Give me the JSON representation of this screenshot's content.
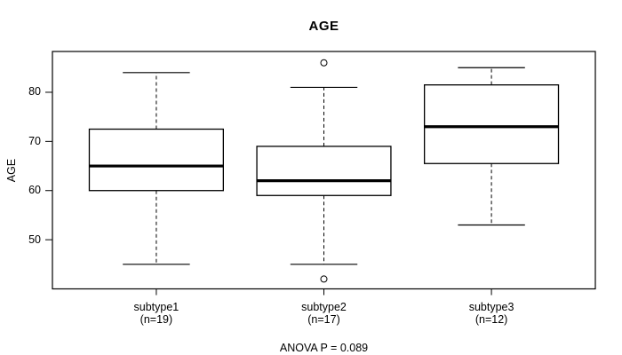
{
  "title": "AGE",
  "colors": {
    "line": "#000000",
    "background": "#ffffff",
    "text": "#000000"
  },
  "chart_data": {
    "type": "boxplot",
    "title": "AGE",
    "xlabel": "",
    "ylabel": "AGE",
    "categories": [
      "subtype1",
      "subtype2",
      "subtype3"
    ],
    "n_labels": [
      "(n=19)",
      "(n=17)",
      "(n=12)"
    ],
    "yticks": [
      50,
      60,
      70,
      80
    ],
    "ylim": [
      40,
      88.3
    ],
    "grid": false,
    "legend": false,
    "annotation": "ANOVA P = 0.089",
    "series": [
      {
        "name": "subtype1",
        "n": 19,
        "whisker_low": 45,
        "q1": 60,
        "median": 65,
        "q3": 72.5,
        "whisker_high": 84,
        "outliers": []
      },
      {
        "name": "subtype2",
        "n": 17,
        "whisker_low": 45,
        "q1": 59,
        "median": 62,
        "q3": 69,
        "whisker_high": 81,
        "outliers": [
          86,
          42
        ]
      },
      {
        "name": "subtype3",
        "n": 12,
        "whisker_low": 53,
        "q1": 65.5,
        "median": 73,
        "q3": 81.5,
        "whisker_high": 85,
        "outliers": []
      }
    ]
  }
}
